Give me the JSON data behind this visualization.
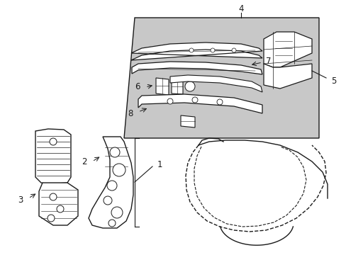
{
  "background_color": "#ffffff",
  "line_color": "#1a1a1a",
  "shade_color": "#c8c8c8",
  "figsize": [
    4.89,
    3.6
  ],
  "dpi": 100,
  "xlim": [
    0,
    489
  ],
  "ylim": [
    0,
    360
  ]
}
